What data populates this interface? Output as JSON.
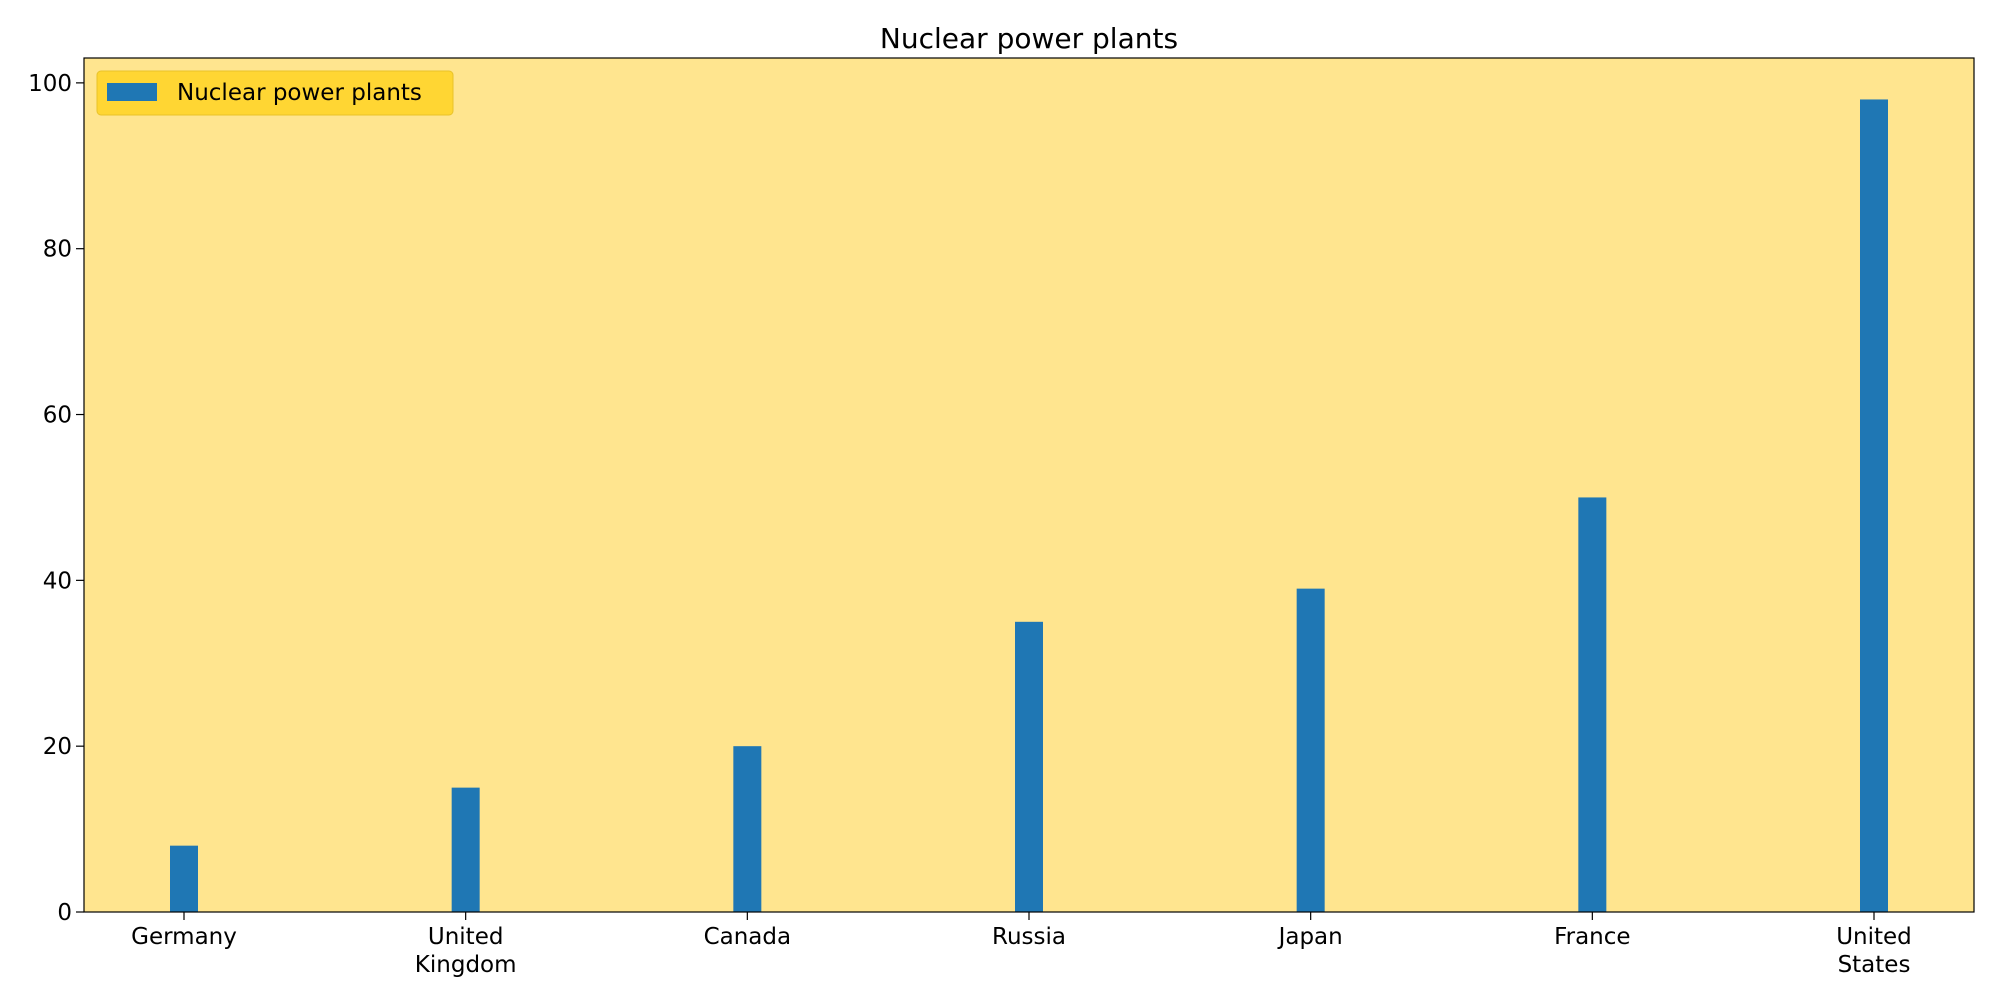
{
  "chart_data": {
    "type": "bar",
    "title": "Nuclear power plants",
    "xlabel": "",
    "ylabel": "",
    "categories": [
      [
        "Germany"
      ],
      [
        "United",
        "Kingdom"
      ],
      [
        "Canada"
      ],
      [
        "Russia"
      ],
      [
        "Japan"
      ],
      [
        "France"
      ],
      [
        "United",
        "States"
      ]
    ],
    "series": [
      {
        "name": "Nuclear power plants",
        "values": [
          8,
          15,
          20,
          35,
          39,
          50,
          98
        ],
        "color": "#1f77b4"
      }
    ],
    "ylim": [
      0,
      103
    ],
    "yticks": [
      0,
      20,
      40,
      60,
      80,
      100
    ],
    "grid": false,
    "legend_position": "top-left",
    "plot_background": "#ffe58f",
    "legend_background": "#ffd633"
  }
}
